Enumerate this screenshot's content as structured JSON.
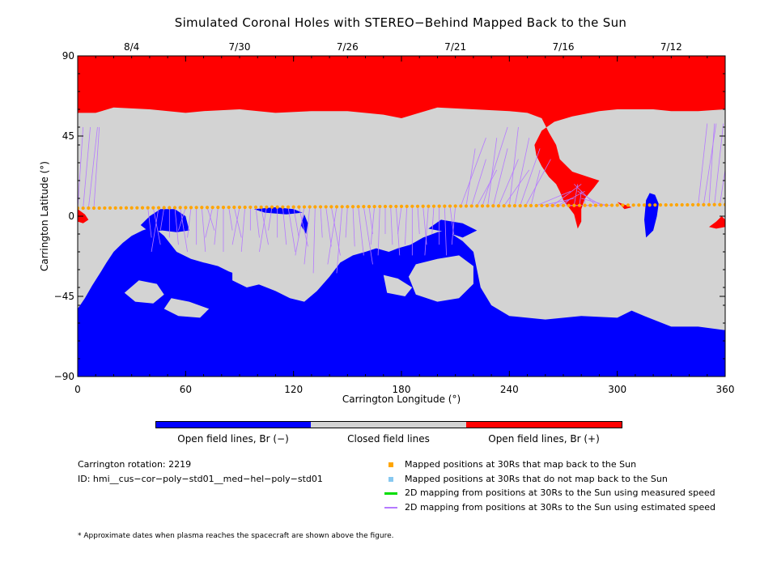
{
  "title": "Simulated Coronal Holes with STEREO−Behind Mapped Back to the Sun",
  "colors": {
    "open_negative": "#0000ff",
    "closed": "#d3d3d3",
    "open_positive": "#ff0000",
    "mapped_back": "#ffa500",
    "not_mapped": "#87c8f0",
    "measured_speed": "#00dd00",
    "estimated_speed": "#b57aff"
  },
  "chart_data": {
    "type": "map",
    "xlabel": "Carrington Longitude (°)",
    "ylabel": "Carrington Latitude (°)",
    "xlim": [
      0,
      360
    ],
    "ylim": [
      -90,
      90
    ],
    "x_ticks": [
      "0",
      "60",
      "120",
      "180",
      "240",
      "300",
      "360"
    ],
    "y_ticks": [
      "90",
      "45",
      "0",
      "−45",
      "−90"
    ],
    "top_axis_dates": [
      {
        "label": "8/4",
        "lon": 30
      },
      {
        "label": "7/30",
        "lon": 90
      },
      {
        "label": "7/26",
        "lon": 150
      },
      {
        "label": "7/21",
        "lon": 210
      },
      {
        "label": "7/16",
        "lon": 270
      },
      {
        "label": "7/12",
        "lon": 330
      }
    ],
    "mapped_points": {
      "lon_start": 0,
      "lon_end": 360,
      "lon_step": 3,
      "lat_start": 4.5,
      "lat_end": 6.5
    },
    "regions": {
      "north_positive_cap": [
        [
          0,
          90
        ],
        [
          360,
          90
        ],
        [
          360,
          60
        ],
        [
          345,
          59
        ],
        [
          330,
          59
        ],
        [
          320,
          60
        ],
        [
          300,
          60
        ],
        [
          290,
          59
        ],
        [
          275,
          56
        ],
        [
          265,
          53
        ],
        [
          258,
          48
        ],
        [
          254,
          40
        ],
        [
          255,
          34
        ],
        [
          258,
          28
        ],
        [
          262,
          22
        ],
        [
          266,
          18
        ],
        [
          268,
          14
        ],
        [
          270,
          9
        ],
        [
          273,
          5
        ],
        [
          276,
          1
        ],
        [
          278,
          -7
        ],
        [
          280,
          -3
        ],
        [
          280,
          4
        ],
        [
          282,
          10
        ],
        [
          287,
          16
        ],
        [
          290,
          20
        ],
        [
          284,
          22
        ],
        [
          275,
          25
        ],
        [
          268,
          32
        ],
        [
          266,
          40
        ],
        [
          262,
          47
        ],
        [
          258,
          55
        ],
        [
          250,
          58
        ],
        [
          240,
          59
        ],
        [
          220,
          60
        ],
        [
          200,
          61
        ],
        [
          180,
          55
        ],
        [
          170,
          57
        ],
        [
          150,
          59
        ],
        [
          130,
          59
        ],
        [
          110,
          58
        ],
        [
          90,
          60
        ],
        [
          70,
          59
        ],
        [
          60,
          58
        ],
        [
          40,
          60
        ],
        [
          20,
          61
        ],
        [
          10,
          58
        ],
        [
          0,
          58
        ]
      ],
      "south_negative_cap": [
        [
          0,
          -90
        ],
        [
          360,
          -90
        ],
        [
          360,
          -64
        ],
        [
          345,
          -62
        ],
        [
          330,
          -62
        ],
        [
          320,
          -58
        ],
        [
          315,
          -56
        ],
        [
          308,
          -53
        ],
        [
          300,
          -57
        ],
        [
          280,
          -56
        ],
        [
          260,
          -58
        ],
        [
          240,
          -56
        ],
        [
          230,
          -50
        ],
        [
          224,
          -40
        ],
        [
          222,
          -30
        ],
        [
          220,
          -20
        ],
        [
          214,
          -14
        ],
        [
          205,
          -8
        ],
        [
          200,
          -9
        ],
        [
          192,
          -12
        ],
        [
          185,
          -16
        ],
        [
          178,
          -18
        ],
        [
          173,
          -20
        ],
        [
          166,
          -18
        ],
        [
          160,
          -20
        ],
        [
          153,
          -22
        ],
        [
          146,
          -26
        ],
        [
          140,
          -34
        ],
        [
          133,
          -42
        ],
        [
          126,
          -48
        ],
        [
          118,
          -46
        ],
        [
          110,
          -42
        ],
        [
          100,
          -38
        ],
        [
          92,
          -34
        ],
        [
          84,
          -31
        ],
        [
          78,
          -28
        ],
        [
          70,
          -26
        ],
        [
          63,
          -24
        ],
        [
          55,
          -20
        ],
        [
          48,
          -11
        ],
        [
          42,
          -6
        ],
        [
          36,
          -8
        ],
        [
          30,
          -11
        ],
        [
          25,
          -15
        ],
        [
          20,
          -20
        ],
        [
          16,
          -26
        ],
        [
          13,
          -31
        ],
        [
          8,
          -39
        ],
        [
          4,
          -46
        ],
        [
          0,
          -52
        ]
      ],
      "negative_patches": [
        [
          [
            318,
            13
          ],
          [
            321,
            12
          ],
          [
            323,
            7
          ],
          [
            322,
            0
          ],
          [
            320,
            -8
          ],
          [
            316,
            -12
          ],
          [
            315,
            -2
          ],
          [
            316,
            9
          ]
        ],
        [
          [
            35,
            -5
          ],
          [
            40,
            0
          ],
          [
            46,
            4
          ],
          [
            54,
            4
          ],
          [
            60,
            0
          ],
          [
            62,
            -8
          ],
          [
            55,
            -9
          ],
          [
            47,
            -8
          ],
          [
            40,
            -9
          ]
        ],
        [
          [
            98,
            4
          ],
          [
            110,
            5
          ],
          [
            120,
            4
          ],
          [
            125,
            2
          ],
          [
            116,
            1
          ],
          [
            104,
            2
          ]
        ],
        [
          [
            126,
            1
          ],
          [
            128,
            -4
          ],
          [
            127,
            -10
          ],
          [
            124,
            -5
          ]
        ],
        [
          [
            195,
            -7
          ],
          [
            202,
            -2
          ],
          [
            214,
            -4
          ],
          [
            222,
            -8
          ],
          [
            214,
            -12
          ],
          [
            205,
            -9
          ]
        ]
      ],
      "closed_holes": [
        [
          [
            34,
            -36
          ],
          [
            44,
            -38
          ],
          [
            48,
            -44
          ],
          [
            42,
            -49
          ],
          [
            32,
            -48
          ],
          [
            26,
            -43
          ]
        ],
        [
          [
            52,
            -46
          ],
          [
            62,
            -48
          ],
          [
            73,
            -52
          ],
          [
            68,
            -57
          ],
          [
            56,
            -56
          ],
          [
            48,
            -52
          ]
        ],
        [
          [
            86,
            -30
          ],
          [
            98,
            -31
          ],
          [
            102,
            -38
          ],
          [
            94,
            -40
          ],
          [
            86,
            -36
          ]
        ],
        [
          [
            170,
            -33
          ],
          [
            178,
            -35
          ],
          [
            186,
            -40
          ],
          [
            182,
            -45
          ],
          [
            172,
            -43
          ]
        ],
        [
          [
            188,
            -27
          ],
          [
            200,
            -24
          ],
          [
            212,
            -22
          ],
          [
            220,
            -28
          ],
          [
            220,
            -38
          ],
          [
            212,
            -46
          ],
          [
            200,
            -48
          ],
          [
            188,
            -44
          ],
          [
            184,
            -34
          ]
        ]
      ],
      "positive_patches": [
        [
          [
            0,
            4
          ],
          [
            4,
            1
          ],
          [
            6,
            -2
          ],
          [
            3,
            -4
          ],
          [
            0,
            -3
          ]
        ],
        [
          [
            358,
            0
          ],
          [
            360,
            -2
          ],
          [
            360,
            -6
          ],
          [
            355,
            -7
          ],
          [
            351,
            -6
          ],
          [
            355,
            -3
          ]
        ],
        [
          [
            300,
            8
          ],
          [
            308,
            5
          ],
          [
            304,
            4
          ]
        ]
      ]
    }
  },
  "colorbar": {
    "labels": [
      "Open field lines, Br (−)",
      "Closed field lines",
      "Open field lines, Br (+)"
    ]
  },
  "info": {
    "rotation": "Carrington rotation: 2219",
    "id": "ID: hmi__cus−cor−poly−std01__med−hel−poly−std01"
  },
  "legend": [
    {
      "label": "Mapped positions at 30Rs that map back to the Sun",
      "kind": "square",
      "color": "#ffa500"
    },
    {
      "label": "Mapped positions at 30Rs that do not map back to the Sun",
      "kind": "square",
      "color": "#87c8f0"
    },
    {
      "label": "2D mapping from positions at 30Rs to the Sun using measured speed",
      "kind": "line",
      "color": "#00dd00"
    },
    {
      "label": "2D mapping from positions at 30Rs to the Sun using estimated speed",
      "kind": "line",
      "color": "#b57aff"
    }
  ],
  "note": "* Approximate dates when plasma reaches the spacecraft are shown above the figure."
}
